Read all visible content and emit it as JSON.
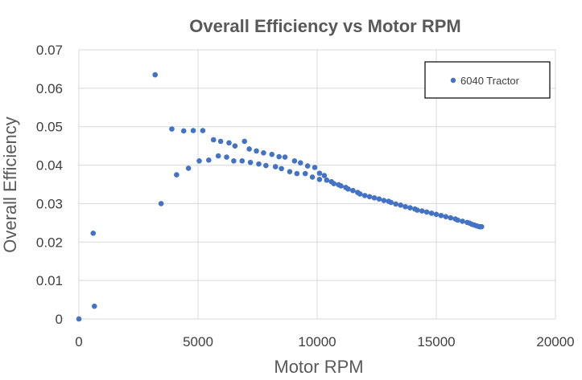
{
  "colors": {
    "series": "#4472C4",
    "grid": "#D9D9D9",
    "axis_text": "#404040",
    "title_text": "#595959",
    "legend_border": "#000000"
  },
  "chart_data": {
    "type": "scatter",
    "title": "Overall Efficiency  vs Motor RPM",
    "xlabel": "Motor RPM",
    "ylabel": "Overall Efficiency",
    "xlim": [
      0,
      20000
    ],
    "ylim": [
      0,
      0.07
    ],
    "xticks": [
      0,
      5000,
      10000,
      15000,
      20000
    ],
    "xtick_labels": [
      "0",
      "5000",
      "10000",
      "15000",
      "20000"
    ],
    "yticks": [
      0,
      0.01,
      0.02,
      0.03,
      0.04,
      0.05,
      0.06,
      0.07
    ],
    "ytick_labels": [
      "0",
      "0.01",
      "0.02",
      "0.03",
      "0.04",
      "0.05",
      "0.06",
      "0.07"
    ],
    "grid": true,
    "legend_position": "top-right",
    "series": [
      {
        "name": "6040 Tractor",
        "points": [
          [
            0,
            0
          ],
          [
            650,
            0.0033
          ],
          [
            600,
            0.0223
          ],
          [
            3200,
            0.0635
          ],
          [
            3450,
            0.03
          ],
          [
            3900,
            0.0494
          ],
          [
            4100,
            0.0375
          ],
          [
            4400,
            0.0489
          ],
          [
            4600,
            0.0392
          ],
          [
            4800,
            0.049
          ],
          [
            5050,
            0.0411
          ],
          [
            5200,
            0.049
          ],
          [
            5450,
            0.0413
          ],
          [
            5650,
            0.0466
          ],
          [
            5850,
            0.0424
          ],
          [
            5950,
            0.0462
          ],
          [
            6200,
            0.0421
          ],
          [
            6300,
            0.0458
          ],
          [
            6500,
            0.0411
          ],
          [
            6550,
            0.045
          ],
          [
            6850,
            0.0411
          ],
          [
            6950,
            0.0462
          ],
          [
            7150,
            0.0442
          ],
          [
            7200,
            0.0407
          ],
          [
            7450,
            0.0437
          ],
          [
            7550,
            0.0403
          ],
          [
            7750,
            0.0432
          ],
          [
            7850,
            0.0399
          ],
          [
            8100,
            0.0428
          ],
          [
            8250,
            0.0396
          ],
          [
            8400,
            0.0422
          ],
          [
            8500,
            0.0391
          ],
          [
            8650,
            0.0421
          ],
          [
            8850,
            0.0383
          ],
          [
            9050,
            0.0411
          ],
          [
            9150,
            0.0378
          ],
          [
            9300,
            0.0406
          ],
          [
            9500,
            0.0378
          ],
          [
            9600,
            0.0398
          ],
          [
            9800,
            0.0369
          ],
          [
            9900,
            0.0394
          ],
          [
            10100,
            0.0363
          ],
          [
            10100,
            0.0379
          ],
          [
            10300,
            0.0373
          ],
          [
            10400,
            0.0361
          ],
          [
            10600,
            0.0357
          ],
          [
            10700,
            0.0352
          ],
          [
            10900,
            0.0349
          ],
          [
            11000,
            0.0346
          ],
          [
            11200,
            0.0342
          ],
          [
            11300,
            0.0338
          ],
          [
            11500,
            0.0334
          ],
          [
            11700,
            0.0329
          ],
          [
            11800,
            0.0325
          ],
          [
            12000,
            0.0321
          ],
          [
            12200,
            0.0318
          ],
          [
            12400,
            0.0315
          ],
          [
            12600,
            0.0312
          ],
          [
            12800,
            0.0308
          ],
          [
            13000,
            0.0306
          ],
          [
            13100,
            0.0303
          ],
          [
            13300,
            0.0299
          ],
          [
            13500,
            0.0296
          ],
          [
            13700,
            0.0292
          ],
          [
            13900,
            0.0289
          ],
          [
            14100,
            0.0286
          ],
          [
            14200,
            0.0283
          ],
          [
            14400,
            0.0281
          ],
          [
            14600,
            0.0278
          ],
          [
            14800,
            0.0275
          ],
          [
            15000,
            0.0272
          ],
          [
            15200,
            0.0269
          ],
          [
            15400,
            0.0266
          ],
          [
            15600,
            0.0263
          ],
          [
            15800,
            0.026
          ],
          [
            15900,
            0.0257
          ],
          [
            16100,
            0.0254
          ],
          [
            16300,
            0.0251
          ],
          [
            16400,
            0.0249
          ],
          [
            16500,
            0.0246
          ],
          [
            16600,
            0.0244
          ],
          [
            16700,
            0.0242
          ],
          [
            16800,
            0.024
          ],
          [
            16850,
            0.024
          ],
          [
            16900,
            0.024
          ]
        ]
      }
    ]
  }
}
